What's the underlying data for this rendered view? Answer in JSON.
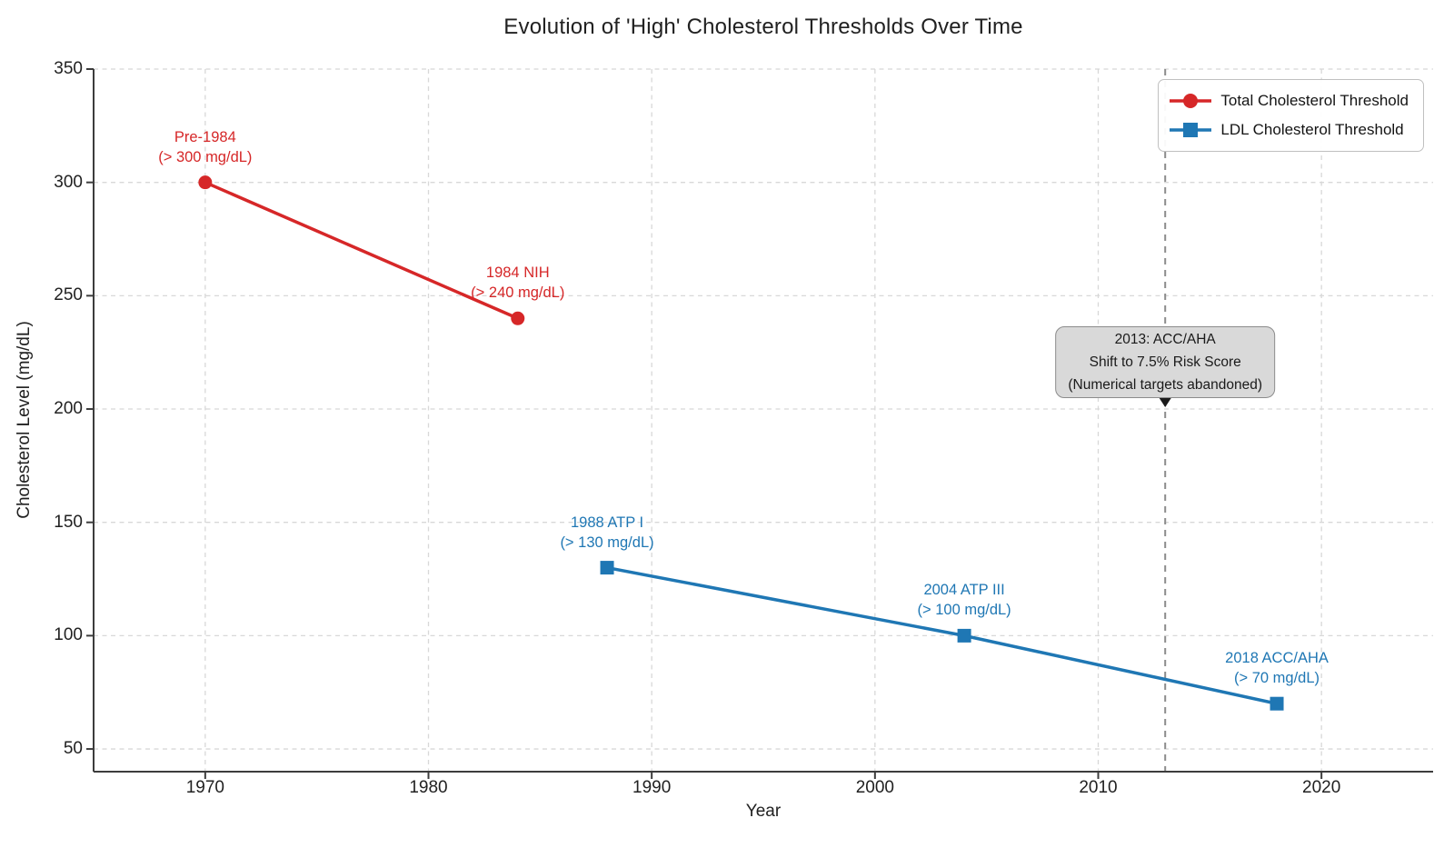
{
  "chart_data": {
    "type": "line",
    "title": "Evolution of 'High' Cholesterol Thresholds Over Time",
    "xlabel": "Year",
    "ylabel": "Cholesterol Level (mg/dL)",
    "xlim": [
      1965,
      2025
    ],
    "ylim": [
      40,
      350
    ],
    "xticks": [
      1970,
      1980,
      1990,
      2000,
      2010,
      2020
    ],
    "yticks": [
      50,
      100,
      150,
      200,
      250,
      300,
      350
    ],
    "grid": true,
    "background": "#ffffff",
    "grid_color": "#d8d8d8",
    "axis_color": "#3c3c3c",
    "legend_position": "upper right",
    "series": [
      {
        "name": "Total Cholesterol Threshold",
        "color": "#d62728",
        "marker": "circle",
        "points": [
          {
            "x": 1970,
            "y": 300,
            "label": [
              "Pre-1984",
              "(> 300 mg/dL)"
            ]
          },
          {
            "x": 1984,
            "y": 240,
            "label": [
              "1984 NIH",
              "(> 240 mg/dL)"
            ]
          }
        ]
      },
      {
        "name": "LDL Cholesterol Threshold",
        "color": "#1f77b4",
        "marker": "square",
        "points": [
          {
            "x": 1988,
            "y": 130,
            "label": [
              "1988 ATP I",
              "(> 130 mg/dL)"
            ]
          },
          {
            "x": 2004,
            "y": 100,
            "label": [
              "2004 ATP III",
              "(> 100 mg/dL)"
            ]
          },
          {
            "x": 2018,
            "y": 70,
            "label": [
              "2018 ACC/AHA",
              "(> 70 mg/dL)"
            ]
          }
        ]
      }
    ],
    "vline": {
      "x": 2013,
      "color": "#8c8c8c",
      "style": "dashed"
    },
    "annotation": {
      "x": 2013,
      "points_to_y": 200,
      "lines": [
        "2013: ACC/AHA",
        "Shift to 7.5% Risk Score",
        "(Numerical targets abandoned)"
      ],
      "box_color": "#d9d9d9",
      "border_color": "#8c8c8c"
    }
  }
}
